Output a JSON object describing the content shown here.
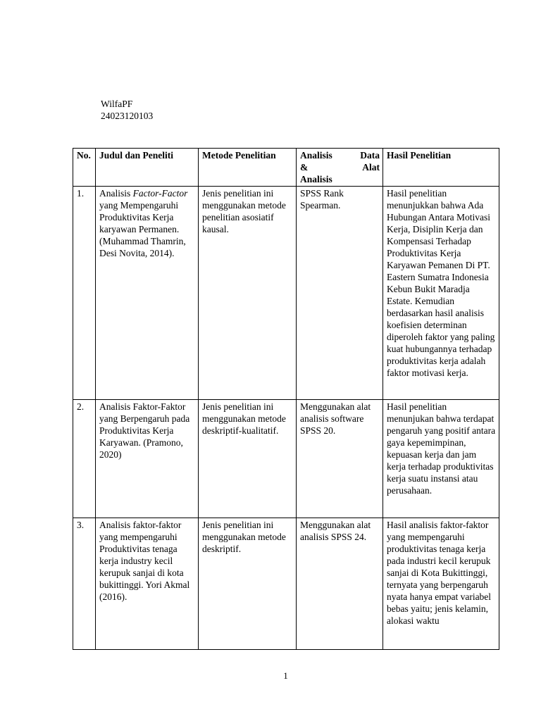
{
  "meta": {
    "author": "WilfaPF",
    "student_id": "24023120103"
  },
  "footer": {
    "page_number": "1"
  },
  "table": {
    "headers": {
      "no": "No.",
      "judul": "Judul dan Peneliti",
      "metode": "Metode Penelitian",
      "analisis_lines": [
        {
          "left": "Analisis",
          "right": "Data"
        },
        {
          "left": "&",
          "right": "Alat"
        },
        {
          "left": "Analisis",
          "right": ""
        }
      ],
      "hasil": "Hasil Penelitian"
    },
    "rows": [
      {
        "no": "1.",
        "judul": [
          {
            "text": "Analisis ",
            "italic": false
          },
          {
            "text": "Factor-Factor",
            "italic": true
          },
          {
            "text": " yang Mempengaruhi Produktivitas Kerja karyawan Permanen. (Muhammad Thamrin, Desi Novita, 2014).",
            "italic": false
          }
        ],
        "metode": "Jenis penelitian ini menggunakan metode penelitian asosiatif kausal.",
        "analisis": "SPSS Rank Spearman.",
        "hasil": "Hasil penelitian menunjukkan bahwa Ada Hubungan Antara Motivasi Kerja, Disiplin Kerja dan Kompensasi Terhadap Produktivitas Kerja Karyawan Pemanen Di PT. Eastern Sumatra Indonesia Kebun Bukit Maradja Estate. Kemudian berdasarkan hasil analisis koefisien determinan diperoleh faktor yang paling kuat hubungannya terhadap produktivitas kerja adalah faktor motivasi kerja."
      },
      {
        "no": "2.",
        "judul": [
          {
            "text": "Analisis Faktor-Faktor yang Berpengaruh pada Produktivitas Kerja Karyawan. (Pramono, 2020)",
            "italic": false
          }
        ],
        "metode": "Jenis penelitian ini menggunakan metode deskriptif-kualitatif.",
        "analisis": "Menggunakan alat analisis software SPSS 20.",
        "hasil": "Hasil penelitian menunjukan bahwa terdapat pengaruh yang positif antara gaya kepemimpinan, kepuasan kerja dan jam kerja terhadap produktivitas kerja suatu instansi atau perusahaan."
      },
      {
        "no": "3.",
        "judul": [
          {
            "text": "Analisis faktor-faktor yang mempengaruhi Produktivitas tenaga kerja industry kecil kerupuk sanjai di kota bukittinggi. Yori Akmal (2016).",
            "italic": false
          }
        ],
        "metode": "Jenis penelitian ini menggunakan metode deskriptif.",
        "analisis": "Menggunakan alat analisis SPSS 24.",
        "hasil": "Hasil analisis faktor-faktor yang mempengaruhi produktivitas tenaga kerja pada industri kecil kerupuk sanjai di Kota Bukittinggi, ternyata yang berpengaruh nyata hanya empat variabel bebas yaitu; jenis kelamin, alokasi waktu"
      }
    ]
  }
}
